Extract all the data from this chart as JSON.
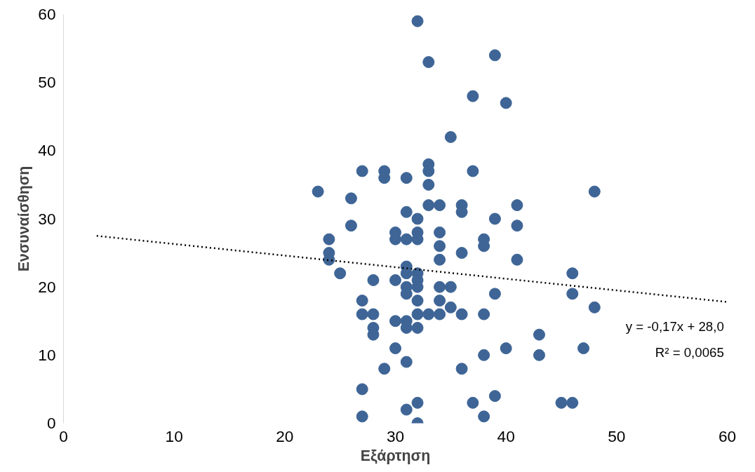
{
  "chart_data": {
    "type": "scatter",
    "xlabel": "Εξάρτηση",
    "ylabel": "Ενσυναίσθηση",
    "xlim": [
      0,
      60
    ],
    "ylim": [
      0,
      60
    ],
    "xticks": [
      0,
      10,
      20,
      30,
      40,
      50,
      60
    ],
    "yticks": [
      0,
      10,
      20,
      30,
      40,
      50,
      60
    ],
    "grid": false,
    "marker": "circle",
    "annotations": [
      "y = -0,17x + 28,0",
      "R² = 0,0065"
    ],
    "series": [
      {
        "color": "#3e6596",
        "x": [
          32,
          33,
          39,
          37,
          40,
          35,
          23,
          48,
          27,
          29,
          29,
          31,
          33,
          33,
          33,
          37,
          26,
          26,
          31,
          32,
          33,
          34,
          36,
          36,
          39,
          41,
          41,
          24,
          24,
          24,
          25,
          30,
          30,
          31,
          32,
          32,
          34,
          34,
          34,
          36,
          38,
          38,
          41,
          28,
          30,
          31,
          31,
          32,
          32,
          31,
          32,
          34,
          35,
          31,
          39,
          46,
          46,
          48,
          27,
          32,
          34,
          27,
          28,
          32,
          33,
          34,
          35,
          36,
          38,
          28,
          28,
          30,
          31,
          31,
          32,
          43,
          30,
          31,
          29,
          36,
          38,
          40,
          43,
          47,
          27,
          39,
          27,
          31,
          32,
          32,
          37,
          38,
          45,
          46
        ],
        "values": [
          59,
          53,
          54,
          48,
          47,
          42,
          34,
          34,
          37,
          37,
          36,
          36,
          38,
          37,
          35,
          37,
          33,
          29,
          31,
          30,
          32,
          32,
          32,
          31,
          30,
          32,
          29,
          27,
          25,
          24,
          22,
          28,
          27,
          27,
          28,
          27,
          28,
          26,
          24,
          25,
          27,
          26,
          24,
          21,
          21,
          23,
          22,
          22,
          21,
          20,
          20,
          20,
          20,
          19,
          19,
          22,
          19,
          17,
          18,
          18,
          18,
          16,
          16,
          16,
          16,
          16,
          17,
          16,
          16,
          14,
          13,
          15,
          15,
          14,
          14,
          13,
          11,
          9,
          8,
          8,
          10,
          11,
          10,
          11,
          5,
          4,
          1,
          2,
          3,
          0,
          3,
          1,
          3,
          3
        ]
      },
      {
        "type": "line",
        "color": "#000000",
        "line_style": "dotted",
        "marker": "none",
        "x": [
          3,
          60
        ],
        "values": [
          27.5,
          17.8
        ]
      }
    ]
  }
}
